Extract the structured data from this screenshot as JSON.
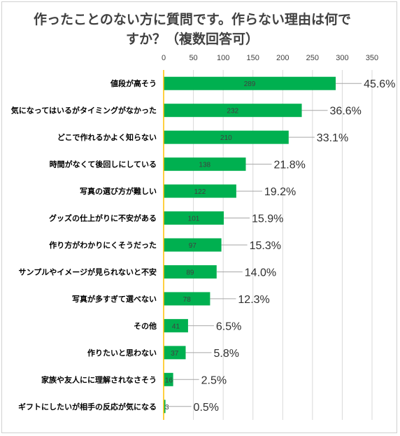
{
  "chart_data": {
    "type": "bar",
    "orientation": "horizontal",
    "title_line1": "作ったことのない方に質問です。作らない理由は何で",
    "title_line2": "すか？（複数回答可）",
    "categories": [
      "値段が高そう",
      "気になってはいるがタイミングがなかった",
      "どこで作れるかよく知らない",
      "時間がなくて後回しにしている",
      "写真の選び方が難しい",
      "グッズの仕上がりに不安がある",
      "作り方がわかりにくそうだった",
      "サンプルやイメージが見られないと不安",
      "写真が多すぎて選べない",
      "その他",
      "作りたいと思わない",
      "家族や友人にに理解されなさそう",
      "ギフトにしたいが相手の反応が気になる"
    ],
    "values": [
      289,
      232,
      210,
      138,
      122,
      101,
      97,
      89,
      78,
      41,
      37,
      16,
      3
    ],
    "percent_labels": [
      "45.6%",
      "36.6%",
      "33.1%",
      "21.8%",
      "19.2%",
      "15.9%",
      "15.3%",
      "14.0%",
      "12.3%",
      "6.5%",
      "5.8%",
      "2.5%",
      "0.5%"
    ],
    "xticks": [
      0,
      50,
      100,
      150,
      200,
      250,
      300,
      350
    ],
    "xlim": [
      0,
      350
    ],
    "grid": true,
    "bar_color": "#00b050",
    "axis_color": "#ffc000",
    "grid_color": "#d9d9d9"
  }
}
